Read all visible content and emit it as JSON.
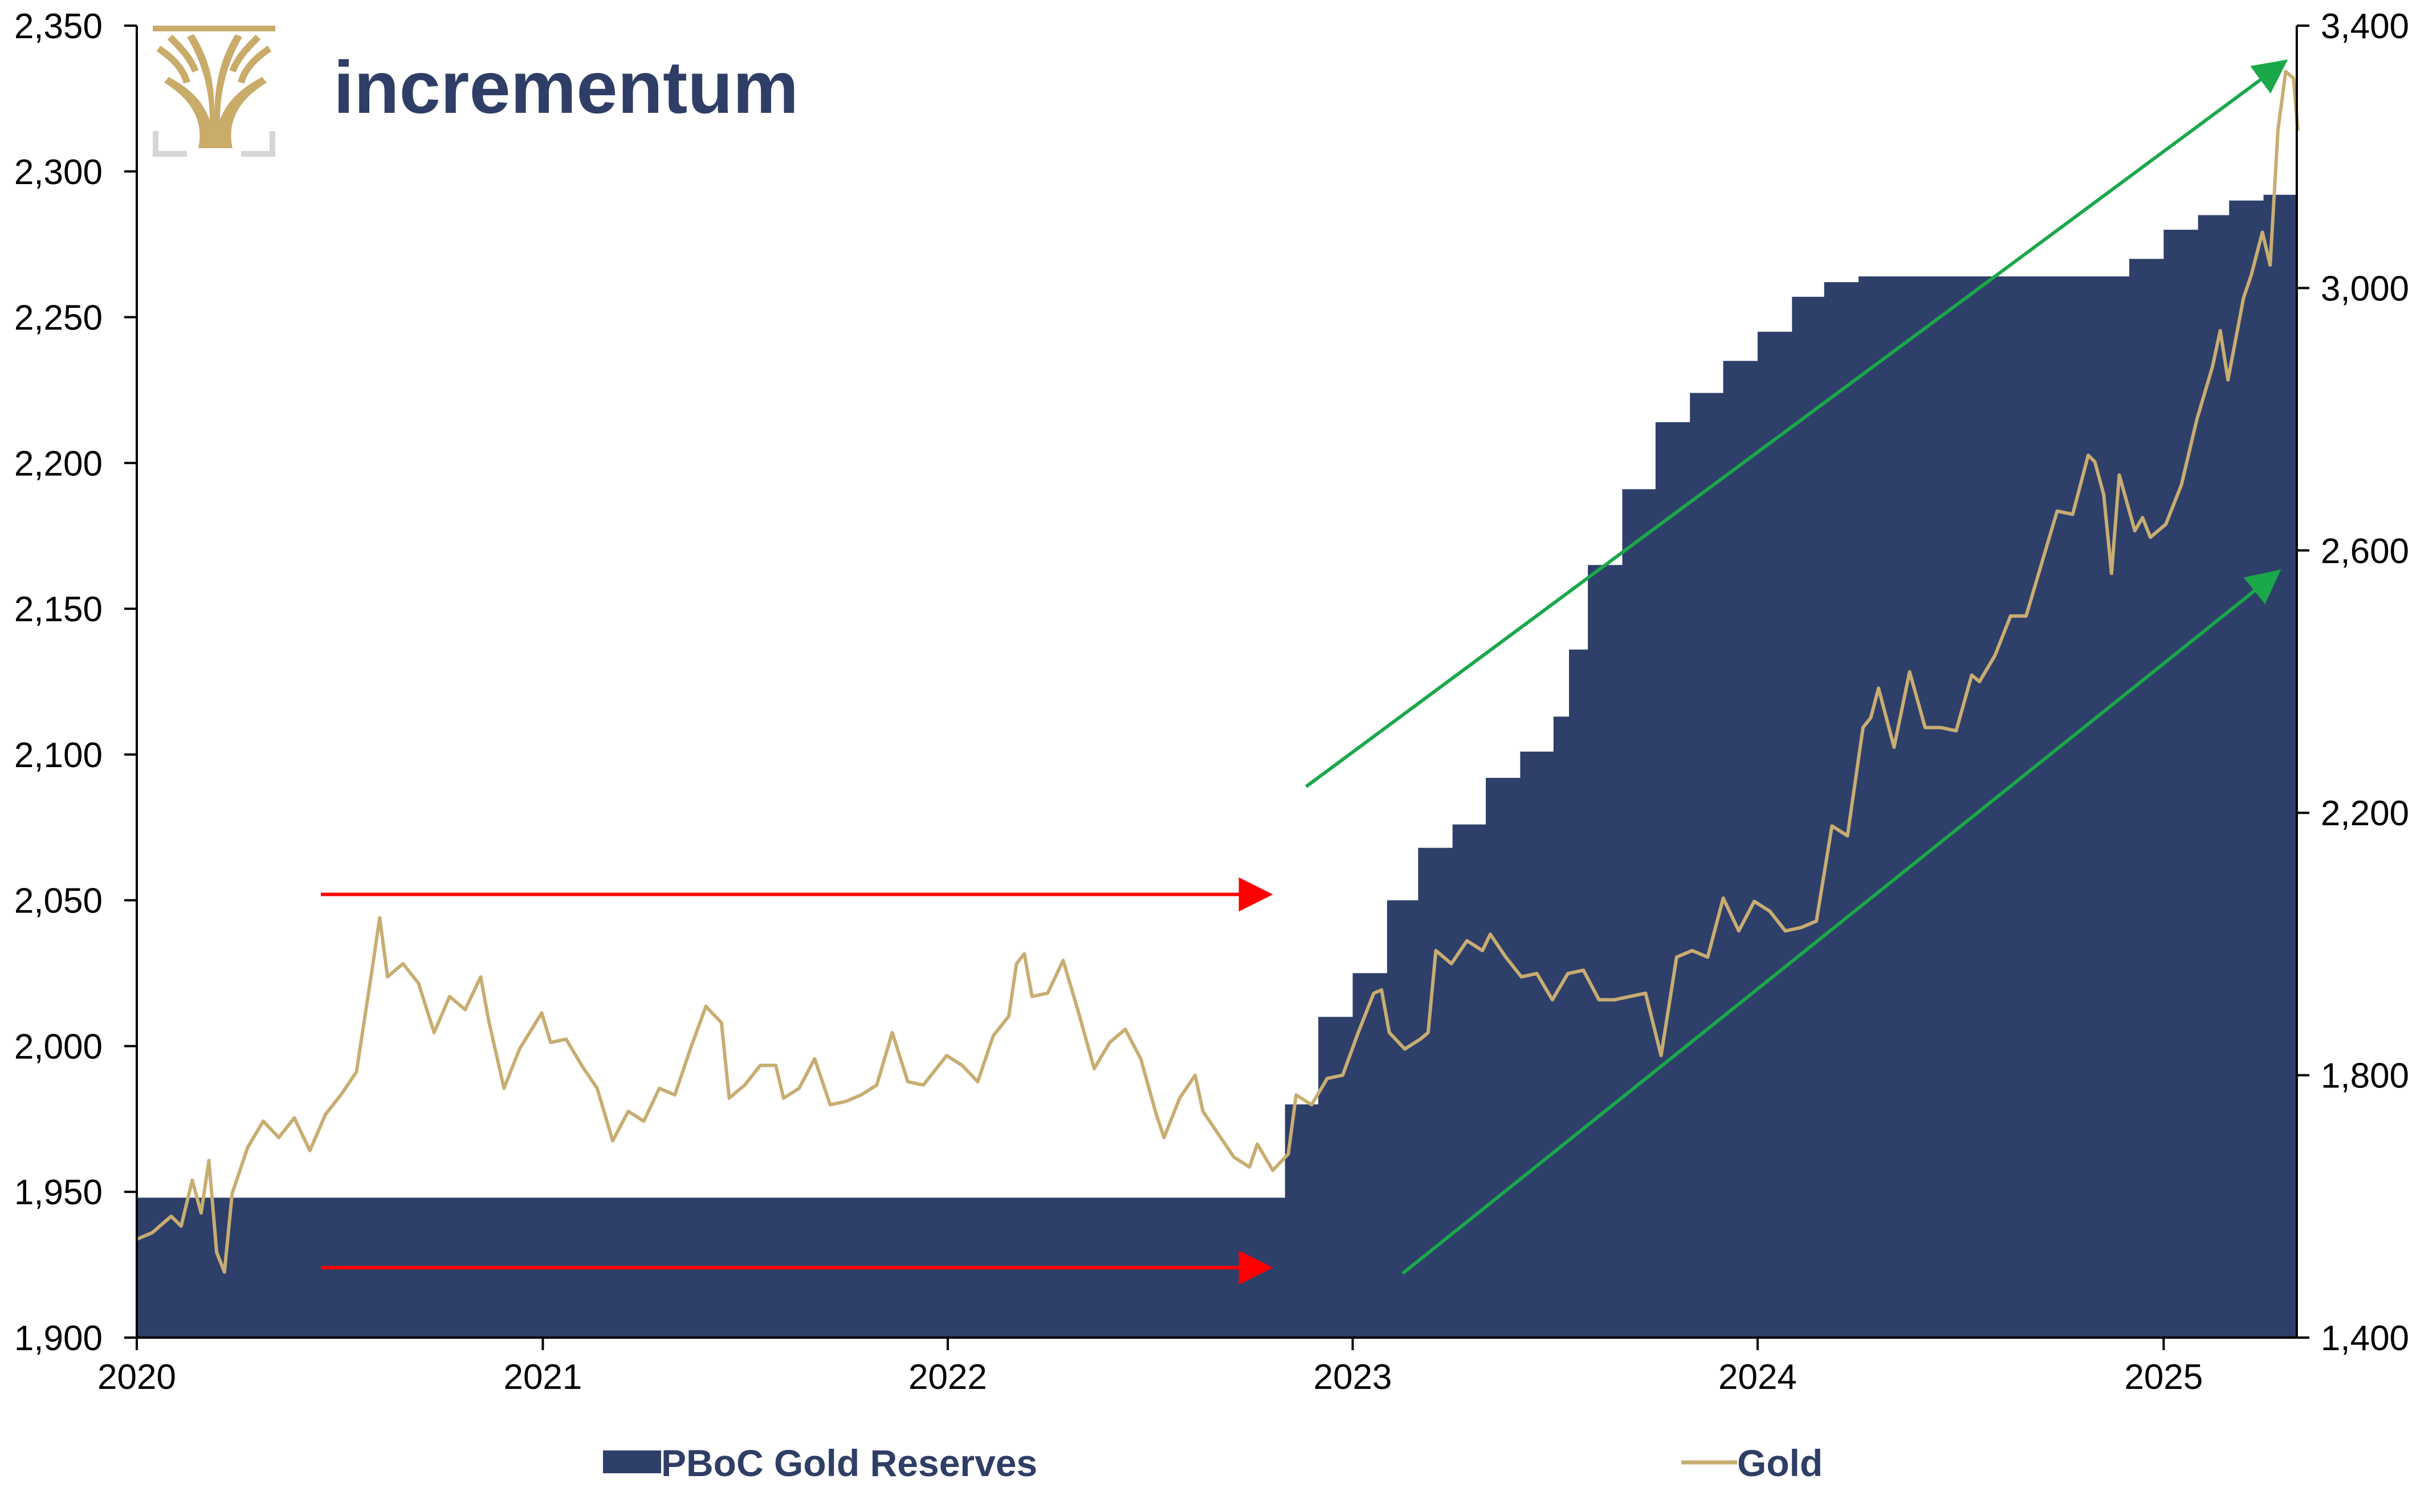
{
  "brand": {
    "name": "incrementum",
    "text_color": "#2f3e66",
    "logo_color": "#c9ab6a"
  },
  "colors": {
    "reserves_fill": "#2e3f69",
    "gold_line": "#c8ad72",
    "trend_arrows": "#1aa84a",
    "flat_arrows": "#ff0000",
    "axis": "#000000"
  },
  "chart_data": {
    "type": "area",
    "left_axis": {
      "ylim": [
        1900,
        2350
      ],
      "ticks": [
        1900,
        1950,
        2000,
        2050,
        2100,
        2150,
        2200,
        2250,
        2300,
        2350
      ],
      "tick_labels": [
        "1,900",
        "1,950",
        "2,000",
        "2,050",
        "2,100",
        "2,150",
        "2,200",
        "2,250",
        "2,300",
        "2,350"
      ]
    },
    "right_axis": {
      "ylim": [
        1400,
        3400
      ],
      "ticks": [
        1400,
        1800,
        2200,
        2600,
        3000,
        3400
      ],
      "tick_labels": [
        "1,400",
        "1,800",
        "2,200",
        "2,600",
        "3,000",
        "3,400"
      ]
    },
    "x_axis": {
      "xlim": [
        "2020-01-01",
        "2025-05-01"
      ],
      "ticks": [
        "2020-01-01",
        "2021-01-01",
        "2022-01-01",
        "2023-01-01",
        "2024-01-01",
        "2025-01-01"
      ],
      "tick_labels": [
        "2020",
        "2021",
        "2022",
        "2023",
        "2024",
        "2025"
      ]
    },
    "grid": false,
    "legend_position": "bottom",
    "series": [
      {
        "name": "PBoC Gold Reserves",
        "type": "area",
        "axis": "left",
        "points": [
          [
            "2020-01-01",
            1948
          ],
          [
            "2022-10-31",
            1948
          ],
          [
            "2022-11-01",
            1980
          ],
          [
            "2022-12-01",
            2010
          ],
          [
            "2023-01-01",
            2025
          ],
          [
            "2023-02-01",
            2050
          ],
          [
            "2023-03-01",
            2068
          ],
          [
            "2023-04-01",
            2076
          ],
          [
            "2023-05-01",
            2092
          ],
          [
            "2023-06-01",
            2101
          ],
          [
            "2023-07-01",
            2113
          ],
          [
            "2023-07-15",
            2136
          ],
          [
            "2023-08-01",
            2165
          ],
          [
            "2023-09-01",
            2191
          ],
          [
            "2023-10-01",
            2214
          ],
          [
            "2023-11-01",
            2224
          ],
          [
            "2023-12-01",
            2235
          ],
          [
            "2024-01-01",
            2245
          ],
          [
            "2024-02-01",
            2257
          ],
          [
            "2024-03-01",
            2262
          ],
          [
            "2024-04-01",
            2264
          ],
          [
            "2024-11-01",
            2264
          ],
          [
            "2024-12-01",
            2270
          ],
          [
            "2025-01-01",
            2280
          ],
          [
            "2025-02-01",
            2285
          ],
          [
            "2025-03-01",
            2290
          ],
          [
            "2025-04-01",
            2292
          ],
          [
            "2025-04-30",
            2292
          ]
        ]
      },
      {
        "name": "Gold",
        "type": "line",
        "axis": "right",
        "points": [
          [
            "2020-01-01",
            1550
          ],
          [
            "2020-01-15",
            1560
          ],
          [
            "2020-02-01",
            1585
          ],
          [
            "2020-02-10",
            1570
          ],
          [
            "2020-02-20",
            1640
          ],
          [
            "2020-02-28",
            1590
          ],
          [
            "2020-03-06",
            1670
          ],
          [
            "2020-03-13",
            1530
          ],
          [
            "2020-03-20",
            1500
          ],
          [
            "2020-03-27",
            1620
          ],
          [
            "2020-04-10",
            1690
          ],
          [
            "2020-04-24",
            1730
          ],
          [
            "2020-05-08",
            1705
          ],
          [
            "2020-05-22",
            1735
          ],
          [
            "2020-06-05",
            1685
          ],
          [
            "2020-06-19",
            1740
          ],
          [
            "2020-07-03",
            1770
          ],
          [
            "2020-07-17",
            1805
          ],
          [
            "2020-07-31",
            1960
          ],
          [
            "2020-08-07",
            2040
          ],
          [
            "2020-08-14",
            1950
          ],
          [
            "2020-08-28",
            1970
          ],
          [
            "2020-09-11",
            1940
          ],
          [
            "2020-09-25",
            1865
          ],
          [
            "2020-10-09",
            1920
          ],
          [
            "2020-10-23",
            1900
          ],
          [
            "2020-11-06",
            1950
          ],
          [
            "2020-11-13",
            1885
          ],
          [
            "2020-11-27",
            1780
          ],
          [
            "2020-12-11",
            1840
          ],
          [
            "2020-12-31",
            1895
          ],
          [
            "2021-01-08",
            1850
          ],
          [
            "2021-01-22",
            1855
          ],
          [
            "2021-02-05",
            1815
          ],
          [
            "2021-02-19",
            1780
          ],
          [
            "2021-03-05",
            1700
          ],
          [
            "2021-03-19",
            1745
          ],
          [
            "2021-04-02",
            1730
          ],
          [
            "2021-04-16",
            1780
          ],
          [
            "2021-04-30",
            1770
          ],
          [
            "2021-05-14",
            1840
          ],
          [
            "2021-05-28",
            1905
          ],
          [
            "2021-06-11",
            1880
          ],
          [
            "2021-06-18",
            1765
          ],
          [
            "2021-07-02",
            1785
          ],
          [
            "2021-07-16",
            1815
          ],
          [
            "2021-07-30",
            1815
          ],
          [
            "2021-08-06",
            1765
          ],
          [
            "2021-08-20",
            1780
          ],
          [
            "2021-09-03",
            1825
          ],
          [
            "2021-09-17",
            1755
          ],
          [
            "2021-10-01",
            1760
          ],
          [
            "2021-10-15",
            1770
          ],
          [
            "2021-10-29",
            1785
          ],
          [
            "2021-11-12",
            1865
          ],
          [
            "2021-11-26",
            1790
          ],
          [
            "2021-12-10",
            1785
          ],
          [
            "2021-12-31",
            1830
          ],
          [
            "2022-01-14",
            1815
          ],
          [
            "2022-01-28",
            1790
          ],
          [
            "2022-02-11",
            1860
          ],
          [
            "2022-02-25",
            1890
          ],
          [
            "2022-03-04",
            1970
          ],
          [
            "2022-03-11",
            1985
          ],
          [
            "2022-03-18",
            1920
          ],
          [
            "2022-04-01",
            1925
          ],
          [
            "2022-04-15",
            1975
          ],
          [
            "2022-04-29",
            1895
          ],
          [
            "2022-05-13",
            1810
          ],
          [
            "2022-05-27",
            1850
          ],
          [
            "2022-06-10",
            1870
          ],
          [
            "2022-06-24",
            1825
          ],
          [
            "2022-07-08",
            1740
          ],
          [
            "2022-07-15",
            1705
          ],
          [
            "2022-07-29",
            1765
          ],
          [
            "2022-08-12",
            1800
          ],
          [
            "2022-08-19",
            1745
          ],
          [
            "2022-09-02",
            1710
          ],
          [
            "2022-09-16",
            1675
          ],
          [
            "2022-09-30",
            1660
          ],
          [
            "2022-10-07",
            1695
          ],
          [
            "2022-10-21",
            1655
          ],
          [
            "2022-11-04",
            1680
          ],
          [
            "2022-11-11",
            1770
          ],
          [
            "2022-11-25",
            1755
          ],
          [
            "2022-12-09",
            1795
          ],
          [
            "2022-12-23",
            1800
          ],
          [
            "2023-01-06",
            1865
          ],
          [
            "2023-01-20",
            1925
          ],
          [
            "2023-01-27",
            1930
          ],
          [
            "2023-02-03",
            1865
          ],
          [
            "2023-02-17",
            1840
          ],
          [
            "2023-03-03",
            1855
          ],
          [
            "2023-03-10",
            1865
          ],
          [
            "2023-03-17",
            1990
          ],
          [
            "2023-03-31",
            1970
          ],
          [
            "2023-04-14",
            2005
          ],
          [
            "2023-04-28",
            1990
          ],
          [
            "2023-05-05",
            2015
          ],
          [
            "2023-05-19",
            1980
          ],
          [
            "2023-06-02",
            1950
          ],
          [
            "2023-06-16",
            1955
          ],
          [
            "2023-06-30",
            1915
          ],
          [
            "2023-07-14",
            1955
          ],
          [
            "2023-07-28",
            1960
          ],
          [
            "2023-08-11",
            1915
          ],
          [
            "2023-08-25",
            1915
          ],
          [
            "2023-09-08",
            1920
          ],
          [
            "2023-09-22",
            1925
          ],
          [
            "2023-10-06",
            1830
          ],
          [
            "2023-10-20",
            1980
          ],
          [
            "2023-11-03",
            1990
          ],
          [
            "2023-11-17",
            1980
          ],
          [
            "2023-12-01",
            2070
          ],
          [
            "2023-12-15",
            2020
          ],
          [
            "2023-12-29",
            2065
          ],
          [
            "2024-01-12",
            2050
          ],
          [
            "2024-01-26",
            2020
          ],
          [
            "2024-02-09",
            2025
          ],
          [
            "2024-02-23",
            2035
          ],
          [
            "2024-03-08",
            2180
          ],
          [
            "2024-03-22",
            2165
          ],
          [
            "2024-04-05",
            2330
          ],
          [
            "2024-04-12",
            2345
          ],
          [
            "2024-04-19",
            2390
          ],
          [
            "2024-05-03",
            2300
          ],
          [
            "2024-05-17",
            2415
          ],
          [
            "2024-05-31",
            2330
          ],
          [
            "2024-06-14",
            2330
          ],
          [
            "2024-06-28",
            2325
          ],
          [
            "2024-07-12",
            2410
          ],
          [
            "2024-07-19",
            2400
          ],
          [
            "2024-08-02",
            2440
          ],
          [
            "2024-08-16",
            2500
          ],
          [
            "2024-08-30",
            2500
          ],
          [
            "2024-09-13",
            2580
          ],
          [
            "2024-09-27",
            2660
          ],
          [
            "2024-10-11",
            2655
          ],
          [
            "2024-10-25",
            2745
          ],
          [
            "2024-10-31",
            2735
          ],
          [
            "2024-11-08",
            2685
          ],
          [
            "2024-11-15",
            2565
          ],
          [
            "2024-11-22",
            2715
          ],
          [
            "2024-12-06",
            2630
          ],
          [
            "2024-12-13",
            2650
          ],
          [
            "2024-12-20",
            2620
          ],
          [
            "2025-01-03",
            2640
          ],
          [
            "2025-01-17",
            2700
          ],
          [
            "2025-01-31",
            2800
          ],
          [
            "2025-02-14",
            2880
          ],
          [
            "2025-02-21",
            2935
          ],
          [
            "2025-02-28",
            2860
          ],
          [
            "2025-03-14",
            2985
          ],
          [
            "2025-03-21",
            3020
          ],
          [
            "2025-03-31",
            3085
          ],
          [
            "2025-04-07",
            3035
          ],
          [
            "2025-04-14",
            3240
          ],
          [
            "2025-04-21",
            3330
          ],
          [
            "2025-04-28",
            3320
          ],
          [
            "2025-05-02",
            3240
          ]
        ]
      }
    ],
    "annotations": {
      "flat_arrows": [
        {
          "from": [
            "2020-06-15",
            2052
          ],
          "to": [
            "2022-10-15",
            2052
          ],
          "axis": "left"
        },
        {
          "from": [
            "2020-06-15",
            1924
          ],
          "to": [
            "2022-10-15",
            1924
          ],
          "axis": "left"
        }
      ],
      "trend_arrows": [
        {
          "from": [
            "2022-11-20",
            2089
          ],
          "to": [
            "2025-04-18",
            2337
          ],
          "axis": "left"
        },
        {
          "from": [
            "2023-02-15",
            1922
          ],
          "to": [
            "2025-04-12",
            2162
          ],
          "axis": "left"
        }
      ]
    }
  }
}
